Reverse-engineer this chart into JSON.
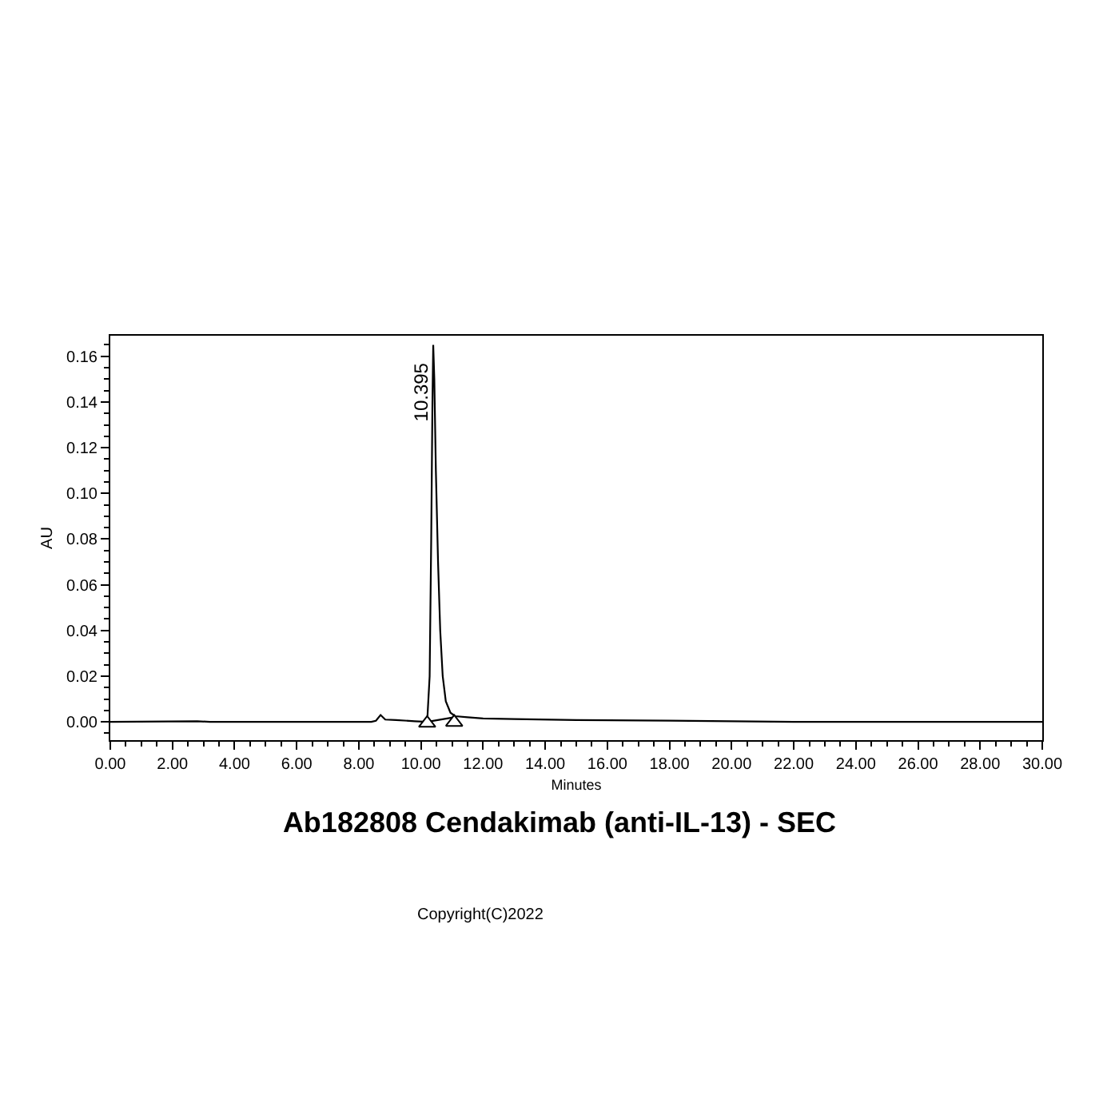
{
  "chart_data": {
    "type": "line",
    "title": "Ab182808 Cendakimab (anti-IL-13) - SEC",
    "xlabel": "Minutes",
    "ylabel": "AU",
    "annotations": [
      {
        "text": "10.395",
        "x": 10.395,
        "y": 0.165
      },
      "Copyright(C)2022"
    ],
    "series": [
      {
        "color": "#000000",
        "x": [
          0,
          2.8,
          3.2,
          6,
          8.4,
          8.55,
          8.7,
          8.85,
          9.2,
          9.8,
          10.2,
          10.28,
          10.33,
          10.37,
          10.395,
          10.43,
          10.48,
          10.55,
          10.62,
          10.7,
          10.8,
          10.95,
          11.1,
          11.5,
          12,
          13,
          15,
          18,
          20,
          22,
          26,
          30
        ],
        "values": [
          0,
          0.0003,
          0,
          0,
          0,
          0.0005,
          0.003,
          0.001,
          0.0008,
          0.0003,
          0,
          0.02,
          0.08,
          0.14,
          0.165,
          0.15,
          0.11,
          0.07,
          0.04,
          0.02,
          0.009,
          0.004,
          0.0025,
          0.002,
          0.0015,
          0.0012,
          0.0008,
          0.0005,
          0.0003,
          0,
          0,
          0
        ]
      },
      {
        "color": "#000000",
        "x": [
          10.2,
          11.07
        ],
        "values": [
          0,
          0.002
        ]
      },
      {
        "type": "scatter",
        "marker": "triangle",
        "color": "#000000",
        "x": [
          10.2,
          11.07
        ],
        "values": [
          -0.0006,
          -0.0002
        ]
      }
    ],
    "xlim": [
      0,
      30
    ],
    "ylim": [
      -0.008,
      0.169
    ],
    "xticks": [
      {
        "value": 0,
        "label": "0.00"
      },
      {
        "value": 0.5,
        "label": null
      },
      {
        "value": 1,
        "label": null
      },
      {
        "value": 1.5,
        "label": null
      },
      {
        "value": 2,
        "label": "2.00"
      },
      {
        "value": 2.5,
        "label": null
      },
      {
        "value": 3,
        "label": null
      },
      {
        "value": 3.5,
        "label": null
      },
      {
        "value": 4,
        "label": "4.00"
      },
      {
        "value": 4.5,
        "label": null
      },
      {
        "value": 5,
        "label": null
      },
      {
        "value": 5.5,
        "label": null
      },
      {
        "value": 6,
        "label": "6.00"
      },
      {
        "value": 6.5,
        "label": null
      },
      {
        "value": 7,
        "label": null
      },
      {
        "value": 7.5,
        "label": null
      },
      {
        "value": 8,
        "label": "8.00"
      },
      {
        "value": 8.5,
        "label": null
      },
      {
        "value": 9,
        "label": null
      },
      {
        "value": 9.5,
        "label": null
      },
      {
        "value": 10,
        "label": "10.00"
      },
      {
        "value": 10.5,
        "label": null
      },
      {
        "value": 11,
        "label": null
      },
      {
        "value": 11.5,
        "label": null
      },
      {
        "value": 12,
        "label": "12.00"
      },
      {
        "value": 12.5,
        "label": null
      },
      {
        "value": 13,
        "label": null
      },
      {
        "value": 13.5,
        "label": null
      },
      {
        "value": 14,
        "label": "14.00"
      },
      {
        "value": 14.5,
        "label": null
      },
      {
        "value": 15,
        "label": null
      },
      {
        "value": 15.5,
        "label": null
      },
      {
        "value": 16,
        "label": "16.00"
      },
      {
        "value": 16.5,
        "label": null
      },
      {
        "value": 17,
        "label": null
      },
      {
        "value": 17.5,
        "label": null
      },
      {
        "value": 18,
        "label": "18.00"
      },
      {
        "value": 18.5,
        "label": null
      },
      {
        "value": 19,
        "label": null
      },
      {
        "value": 19.5,
        "label": null
      },
      {
        "value": 20,
        "label": "20.00"
      },
      {
        "value": 20.5,
        "label": null
      },
      {
        "value": 21,
        "label": null
      },
      {
        "value": 21.5,
        "label": null
      },
      {
        "value": 22,
        "label": "22.00"
      },
      {
        "value": 22.5,
        "label": null
      },
      {
        "value": 23,
        "label": null
      },
      {
        "value": 23.5,
        "label": null
      },
      {
        "value": 24,
        "label": "24.00"
      },
      {
        "value": 24.5,
        "label": null
      },
      {
        "value": 25,
        "label": null
      },
      {
        "value": 25.5,
        "label": null
      },
      {
        "value": 26,
        "label": "26.00"
      },
      {
        "value": 26.5,
        "label": null
      },
      {
        "value": 27,
        "label": null
      },
      {
        "value": 27.5,
        "label": null
      },
      {
        "value": 28,
        "label": "28.00"
      },
      {
        "value": 28.5,
        "label": null
      },
      {
        "value": 29,
        "label": null
      },
      {
        "value": 29.5,
        "label": null
      },
      {
        "value": 30,
        "label": "30.00"
      }
    ],
    "yticks": [
      {
        "value": -0.005,
        "label": null
      },
      {
        "value": 0,
        "label": "0.00"
      },
      {
        "value": 0.005,
        "label": null
      },
      {
        "value": 0.01,
        "label": null
      },
      {
        "value": 0.015,
        "label": null
      },
      {
        "value": 0.02,
        "label": "0.02"
      },
      {
        "value": 0.025,
        "label": null
      },
      {
        "value": 0.03,
        "label": null
      },
      {
        "value": 0.035,
        "label": null
      },
      {
        "value": 0.04,
        "label": "0.04"
      },
      {
        "value": 0.045,
        "label": null
      },
      {
        "value": 0.05,
        "label": null
      },
      {
        "value": 0.055,
        "label": null
      },
      {
        "value": 0.06,
        "label": "0.06"
      },
      {
        "value": 0.065,
        "label": null
      },
      {
        "value": 0.07,
        "label": null
      },
      {
        "value": 0.075,
        "label": null
      },
      {
        "value": 0.08,
        "label": "0.08"
      },
      {
        "value": 0.085,
        "label": null
      },
      {
        "value": 0.09,
        "label": null
      },
      {
        "value": 0.095,
        "label": null
      },
      {
        "value": 0.1,
        "label": "0.10"
      },
      {
        "value": 0.105,
        "label": null
      },
      {
        "value": 0.11,
        "label": null
      },
      {
        "value": 0.115,
        "label": null
      },
      {
        "value": 0.12,
        "label": "0.12"
      },
      {
        "value": 0.125,
        "label": null
      },
      {
        "value": 0.13,
        "label": null
      },
      {
        "value": 0.135,
        "label": null
      },
      {
        "value": 0.14,
        "label": "0.14"
      },
      {
        "value": 0.145,
        "label": null
      },
      {
        "value": 0.15,
        "label": null
      },
      {
        "value": 0.155,
        "label": null
      },
      {
        "value": 0.16,
        "label": "0.16"
      },
      {
        "value": 0.165,
        "label": null
      }
    ]
  }
}
